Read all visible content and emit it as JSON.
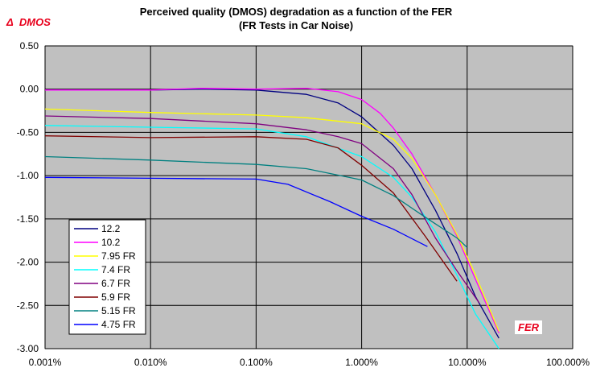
{
  "chart_data": {
    "type": "line",
    "title": "Perceived quality (DMOS) degradation as a function of the FER",
    "subtitle": "(FR Tests in Car Noise)",
    "ylabel": "DMOS",
    "ylabel_prefix": "Δ",
    "xlabel": "FER",
    "x_scale": "log",
    "xlim": [
      0.001,
      100
    ],
    "ylim": [
      -3.0,
      0.5
    ],
    "x_ticks": [
      {
        "value": 0.001,
        "label": "0.001%"
      },
      {
        "value": 0.01,
        "label": "0.010%"
      },
      {
        "value": 0.1,
        "label": "0.100%"
      },
      {
        "value": 1,
        "label": "1.000%"
      },
      {
        "value": 10,
        "label": "10.000%"
      },
      {
        "value": 100,
        "label": "100.000%"
      }
    ],
    "y_ticks": [
      {
        "value": 0.5,
        "label": "0.50"
      },
      {
        "value": 0.0,
        "label": "0.00"
      },
      {
        "value": -0.5,
        "label": "-0.50"
      },
      {
        "value": -1.0,
        "label": "-1.00"
      },
      {
        "value": -1.5,
        "label": "-1.50"
      },
      {
        "value": -2.0,
        "label": "-2.00"
      },
      {
        "value": -2.5,
        "label": "-2.50"
      },
      {
        "value": -3.0,
        "label": "-3.00"
      }
    ],
    "grid": true,
    "plot_background": "#c0c0c0",
    "legend_position": "lower-left",
    "series": [
      {
        "name": "12.2",
        "color": "#000080",
        "x": [
          0.001,
          0.01,
          0.03,
          0.1,
          0.3,
          0.6,
          1,
          2,
          3,
          5,
          8,
          12,
          20
        ],
        "y": [
          -0.01,
          -0.01,
          0.0,
          -0.01,
          -0.06,
          -0.16,
          -0.32,
          -0.65,
          -0.92,
          -1.4,
          -1.9,
          -2.4,
          -2.88
        ]
      },
      {
        "name": "10.2",
        "color": "#ff00ff",
        "x": [
          0.001,
          0.01,
          0.03,
          0.1,
          0.3,
          0.6,
          1,
          1.5,
          2,
          3,
          5,
          8,
          12,
          20
        ],
        "y": [
          -0.01,
          -0.01,
          0.01,
          0.0,
          0.01,
          -0.03,
          -0.12,
          -0.28,
          -0.45,
          -0.75,
          -1.22,
          -1.7,
          -2.2,
          -2.82
        ]
      },
      {
        "name": "7.95 FR",
        "color": "#ffff00",
        "x": [
          0.001,
          0.01,
          0.1,
          0.3,
          1,
          2,
          3,
          5,
          8,
          12,
          20
        ],
        "y": [
          -0.23,
          -0.27,
          -0.3,
          -0.33,
          -0.4,
          -0.58,
          -0.8,
          -1.22,
          -1.68,
          -2.15,
          -2.8
        ]
      },
      {
        "name": "7.4 FR",
        "color": "#00ffff",
        "x": [
          0.001,
          0.01,
          0.1,
          0.3,
          1,
          2,
          3,
          5,
          8,
          12,
          20
        ],
        "y": [
          -0.42,
          -0.44,
          -0.46,
          -0.55,
          -0.78,
          -1.02,
          -1.25,
          -1.65,
          -2.15,
          -2.6,
          -3.0
        ]
      },
      {
        "name": "6.7 FR",
        "color": "#800080",
        "x": [
          0.001,
          0.01,
          0.1,
          0.3,
          0.6,
          1,
          2,
          3,
          5,
          8,
          13
        ],
        "y": [
          -0.31,
          -0.34,
          -0.4,
          -0.47,
          -0.55,
          -0.63,
          -0.92,
          -1.22,
          -1.72,
          -2.1,
          -2.47
        ]
      },
      {
        "name": "5.9 FR",
        "color": "#800000",
        "x": [
          0.001,
          0.01,
          0.1,
          0.3,
          0.6,
          1,
          2,
          4,
          8
        ],
        "y": [
          -0.54,
          -0.56,
          -0.55,
          -0.58,
          -0.68,
          -0.88,
          -1.2,
          -1.7,
          -2.22
        ]
      },
      {
        "name": "5.15 FR",
        "color": "#008080",
        "x": [
          0.001,
          0.01,
          0.1,
          0.3,
          1,
          2,
          4,
          8,
          10
        ],
        "y": [
          -0.78,
          -0.82,
          -0.87,
          -0.92,
          -1.05,
          -1.23,
          -1.48,
          -1.72,
          -1.83
        ]
      },
      {
        "name": "4.75 FR",
        "color": "#0000ff",
        "x": [
          0.001,
          0.01,
          0.1,
          0.2,
          0.5,
          1,
          2,
          4.2
        ],
        "y": [
          -1.02,
          -1.03,
          -1.04,
          -1.1,
          -1.3,
          -1.47,
          -1.62,
          -1.82
        ]
      }
    ]
  }
}
